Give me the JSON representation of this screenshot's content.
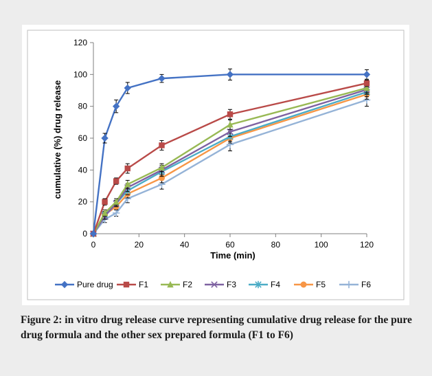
{
  "chart_data": {
    "type": "line",
    "title": "",
    "xlabel": "Time  (min)",
    "ylabel": "cumulative (%) drug release",
    "xlim": [
      0,
      120
    ],
    "ylim": [
      0,
      120
    ],
    "x_ticks": [
      "0",
      "20",
      "40",
      "60",
      "80",
      "100",
      "120"
    ],
    "y_ticks": [
      "0",
      "20",
      "40",
      "60",
      "80",
      "100",
      "120"
    ],
    "grid": false,
    "legend": "bottom",
    "x": [
      0,
      5,
      10,
      15,
      30,
      60,
      120
    ],
    "series": [
      {
        "name": "Pure drug",
        "values": [
          0,
          60,
          80,
          91.5,
          97.5,
          100,
          100
        ],
        "errors": [
          0,
          3,
          4,
          3.5,
          2.5,
          3.5,
          3
        ],
        "color": "#4472C4",
        "marker": "diamond"
      },
      {
        "name": "F1",
        "values": [
          0,
          20,
          33,
          41,
          55.5,
          75,
          94.5
        ],
        "errors": [
          0,
          2,
          2,
          3,
          3,
          3,
          2
        ],
        "color": "#B94A48",
        "marker": "square"
      },
      {
        "name": "F2",
        "values": [
          0,
          13,
          20,
          31,
          41.5,
          68.5,
          91.5
        ],
        "errors": [
          0,
          2,
          2,
          2.5,
          2.5,
          3,
          3
        ],
        "color": "#98B954",
        "marker": "triangle"
      },
      {
        "name": "F3",
        "values": [
          0,
          11,
          19,
          29,
          40,
          64,
          90.5
        ],
        "errors": [
          0,
          2,
          2,
          2.5,
          3,
          3,
          3
        ],
        "color": "#7E62A1",
        "marker": "x"
      },
      {
        "name": "F4",
        "values": [
          0,
          12,
          19,
          27,
          39,
          61,
          89
        ],
        "errors": [
          0,
          2,
          2,
          2.5,
          3,
          3,
          3
        ],
        "color": "#4BACC6",
        "marker": "star"
      },
      {
        "name": "F5",
        "values": [
          0,
          12,
          17,
          25,
          35,
          60,
          87.5
        ],
        "errors": [
          0,
          2,
          2,
          2.5,
          3,
          3,
          3
        ],
        "color": "#F79646",
        "marker": "circle"
      },
      {
        "name": "F6",
        "values": [
          0,
          9,
          13,
          22,
          31,
          56,
          84
        ],
        "errors": [
          0,
          2,
          2,
          2.5,
          3,
          4,
          4
        ],
        "color": "#95B3D7",
        "marker": "plus"
      }
    ]
  },
  "caption": "Figure 2: in vitro drug release curve representing cumulative drug release for the pure drug formula and the other sex prepared formula (F1 to F6)"
}
